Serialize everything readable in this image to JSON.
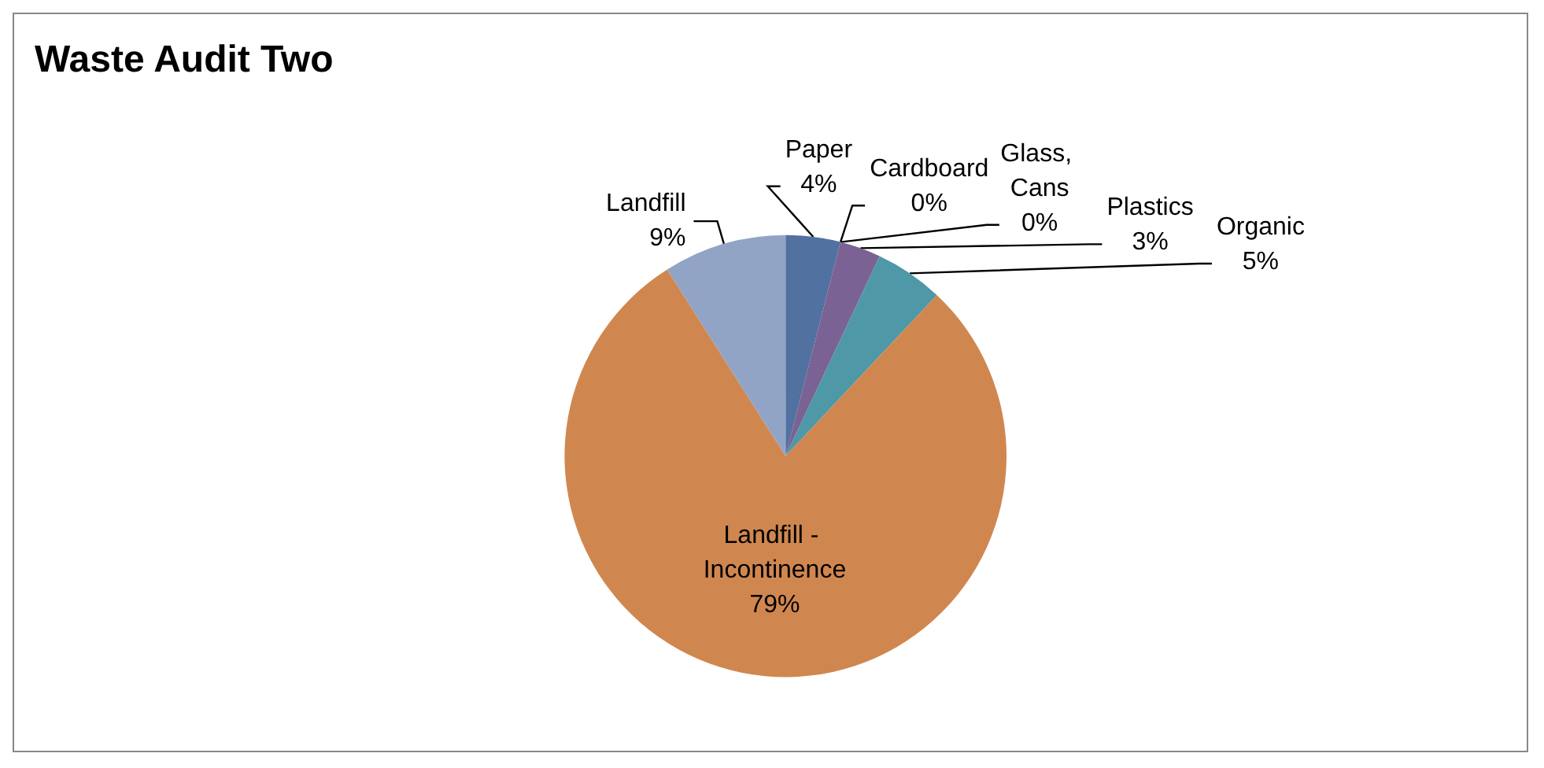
{
  "chart_data": {
    "type": "pie",
    "title": "Waste Audit Two",
    "categories": [
      "Paper",
      "Cardboard",
      "Glass, Cans",
      "Plastics",
      "Organic",
      "Landfill - Incontinence",
      "Landfill"
    ],
    "values": [
      4,
      0,
      0,
      3,
      5,
      79,
      9
    ],
    "value_labels": [
      "4%",
      "0%",
      "0%",
      "3%",
      "5%",
      "79%",
      "9%"
    ],
    "colors": [
      "#5171a0",
      "#a05a5a",
      "#8aa34f",
      "#7b6294",
      "#4e98a8",
      "#d0874f",
      "#91a4c6"
    ],
    "legend": false
  }
}
